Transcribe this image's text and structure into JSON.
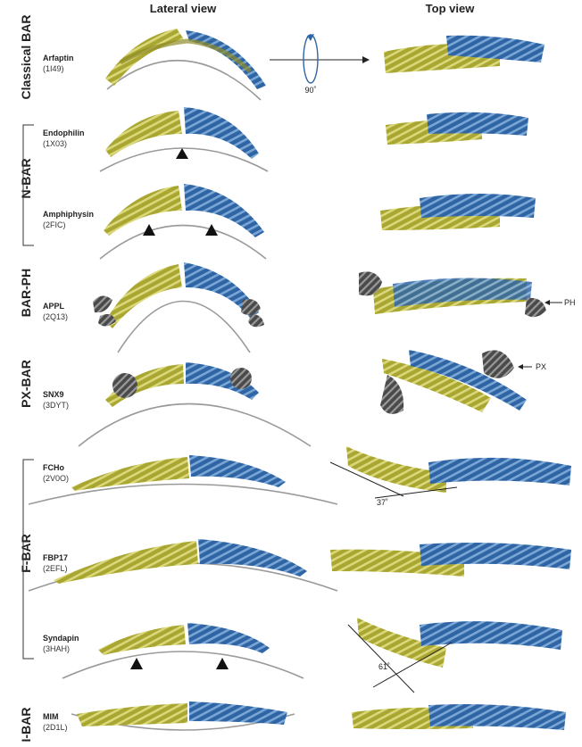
{
  "headers": {
    "lateral": "Lateral view",
    "top": "Top view"
  },
  "families": {
    "classical_bar": "Classical BAR",
    "n_bar": "N-BAR",
    "bar_ph": "BAR-PH",
    "px_bar": "PX-BAR",
    "f_bar": "F-BAR",
    "i_bar": "I-BAR"
  },
  "proteins": [
    {
      "name": "Arfaptin",
      "pdb": "(1I49)"
    },
    {
      "name": "Endophilin",
      "pdb": "(1X03)"
    },
    {
      "name": "Amphiphysin",
      "pdb": "(2FIC)"
    },
    {
      "name": "APPL",
      "pdb": "(2Q13)"
    },
    {
      "name": "SNX9",
      "pdb": "(3DYT)"
    },
    {
      "name": "FCHo",
      "pdb": "(2V0O)"
    },
    {
      "name": "FBP17",
      "pdb": "(2EFL)"
    },
    {
      "name": "Syndapin",
      "pdb": "(3HAH)"
    },
    {
      "name": "MIM",
      "pdb": "(2D1L)"
    }
  ],
  "annotations": {
    "rotation": "90˚",
    "ph": "PH",
    "px": "PX",
    "angle_fcho": "37˚",
    "angle_syndapin": "61˚"
  },
  "colors": {
    "yellow": "#b8b43a",
    "blue": "#3a6fae",
    "gray": "#555555"
  }
}
